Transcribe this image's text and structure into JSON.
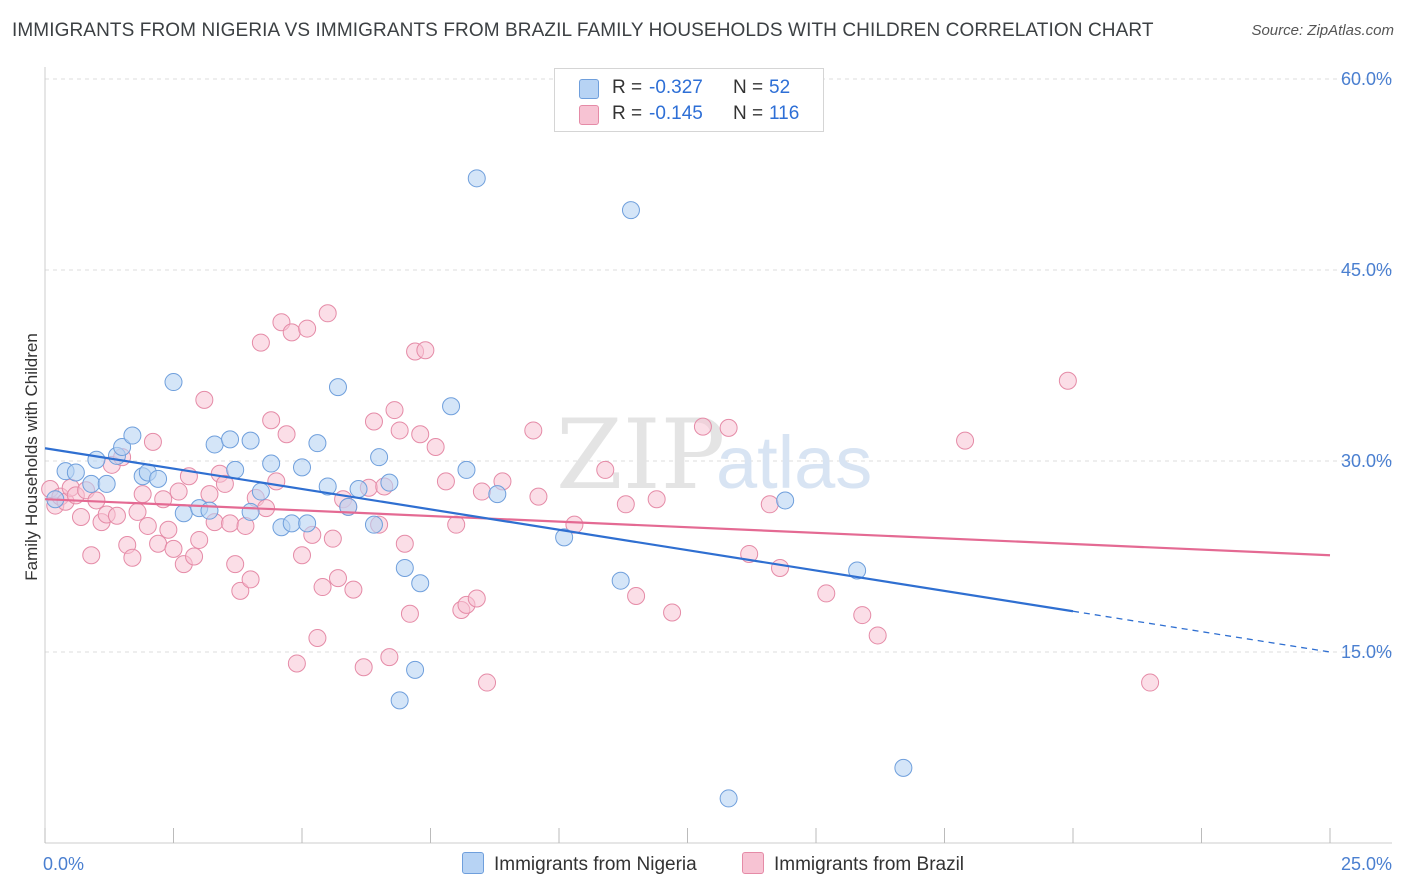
{
  "title": "IMMIGRANTS FROM NIGERIA VS IMMIGRANTS FROM BRAZIL FAMILY HOUSEHOLDS WITH CHILDREN CORRELATION CHART",
  "source": "Source: ZipAtlas.com",
  "watermark": {
    "zip": "ZIP",
    "atlas": "atlas"
  },
  "legend": {
    "rows": [
      {
        "r_label": "R =",
        "r_value": "-0.327",
        "n_label": "N =",
        "n_value": "52"
      },
      {
        "r_label": "R =",
        "r_value": "-0.145",
        "n_label": "N =",
        "n_value": "116"
      }
    ]
  },
  "bottom_legend": {
    "nigeria": "Immigrants from Nigeria",
    "brazil": "Immigrants from Brazil"
  },
  "colors": {
    "nigeria_fill": "#b7d3f4",
    "nigeria_stroke": "#6f9fdc",
    "nigeria_line": "#2f6fd1",
    "brazil_fill": "#f7c3d3",
    "brazil_stroke": "#e58ba7",
    "brazil_line": "#e46a93",
    "tick_text": "#4a7fd0",
    "grid": "#dddddd"
  },
  "chart_data": {
    "type": "scatter",
    "title": "IMMIGRANTS FROM NIGERIA VS IMMIGRANTS FROM BRAZIL FAMILY HOUSEHOLDS WITH CHILDREN CORRELATION CHART",
    "xlabel": "",
    "ylabel": "Family Households with Children",
    "xlim": [
      0,
      25
    ],
    "ylim": [
      0,
      60
    ],
    "x_tick_labels": [
      "0.0%",
      "25.0%"
    ],
    "y_ticks": [
      15,
      30,
      45,
      60
    ],
    "y_tick_labels": [
      "15.0%",
      "30.0%",
      "45.0%",
      "60.0%"
    ],
    "grid": true,
    "series": [
      {
        "name": "Immigrants from Nigeria",
        "r": -0.327,
        "n": 52,
        "trend": {
          "x": [
            0,
            20
          ],
          "y": [
            31.0,
            18.2
          ],
          "dashed_extension": {
            "x": [
              20,
              25
            ],
            "y": [
              18.2,
              15.0
            ]
          }
        },
        "points": [
          [
            0.2,
            27.0
          ],
          [
            0.4,
            29.2
          ],
          [
            0.6,
            29.1
          ],
          [
            0.9,
            28.2
          ],
          [
            1.0,
            30.1
          ],
          [
            1.2,
            28.2
          ],
          [
            1.4,
            30.4
          ],
          [
            1.5,
            31.1
          ],
          [
            1.7,
            32.0
          ],
          [
            1.9,
            28.8
          ],
          [
            2.0,
            29.1
          ],
          [
            2.2,
            28.6
          ],
          [
            2.5,
            36.2
          ],
          [
            2.7,
            25.9
          ],
          [
            3.0,
            26.3
          ],
          [
            3.2,
            26.1
          ],
          [
            3.3,
            31.3
          ],
          [
            3.6,
            31.7
          ],
          [
            3.7,
            29.3
          ],
          [
            4.0,
            26.0
          ],
          [
            4.0,
            31.6
          ],
          [
            4.2,
            27.6
          ],
          [
            4.4,
            29.8
          ],
          [
            4.6,
            24.8
          ],
          [
            4.8,
            25.1
          ],
          [
            5.0,
            29.5
          ],
          [
            5.1,
            25.1
          ],
          [
            5.3,
            31.4
          ],
          [
            5.5,
            28.0
          ],
          [
            5.7,
            35.8
          ],
          [
            5.9,
            26.4
          ],
          [
            6.1,
            27.8
          ],
          [
            6.4,
            25.0
          ],
          [
            6.5,
            30.3
          ],
          [
            6.7,
            28.3
          ],
          [
            6.9,
            11.2
          ],
          [
            7.0,
            21.6
          ],
          [
            7.2,
            13.6
          ],
          [
            7.3,
            20.4
          ],
          [
            7.9,
            34.3
          ],
          [
            8.2,
            29.3
          ],
          [
            8.4,
            52.2
          ],
          [
            8.8,
            27.4
          ],
          [
            10.1,
            24.0
          ],
          [
            11.2,
            20.6
          ],
          [
            11.4,
            49.7
          ],
          [
            13.3,
            3.5
          ],
          [
            14.4,
            26.9
          ],
          [
            15.8,
            21.4
          ],
          [
            16.7,
            5.9
          ]
        ]
      },
      {
        "name": "Immigrants from Brazil",
        "r": -0.145,
        "n": 116,
        "trend": {
          "x": [
            0,
            25
          ],
          "y": [
            27.0,
            22.6
          ]
        },
        "points": [
          [
            0.1,
            27.8
          ],
          [
            0.2,
            26.5
          ],
          [
            0.3,
            27.2
          ],
          [
            0.4,
            26.8
          ],
          [
            0.5,
            27.9
          ],
          [
            0.6,
            27.3
          ],
          [
            0.7,
            25.6
          ],
          [
            0.8,
            27.7
          ],
          [
            0.9,
            22.6
          ],
          [
            1.0,
            26.9
          ],
          [
            1.1,
            25.2
          ],
          [
            1.2,
            25.8
          ],
          [
            1.3,
            29.7
          ],
          [
            1.4,
            25.7
          ],
          [
            1.5,
            30.3
          ],
          [
            1.6,
            23.4
          ],
          [
            1.7,
            22.4
          ],
          [
            1.8,
            26.0
          ],
          [
            1.9,
            27.4
          ],
          [
            2.0,
            24.9
          ],
          [
            2.1,
            31.5
          ],
          [
            2.2,
            23.5
          ],
          [
            2.3,
            27.0
          ],
          [
            2.4,
            24.6
          ],
          [
            2.5,
            23.1
          ],
          [
            2.6,
            27.6
          ],
          [
            2.7,
            21.9
          ],
          [
            2.8,
            28.8
          ],
          [
            2.9,
            22.5
          ],
          [
            3.0,
            23.8
          ],
          [
            3.1,
            34.8
          ],
          [
            3.2,
            27.4
          ],
          [
            3.3,
            25.2
          ],
          [
            3.4,
            29.0
          ],
          [
            3.5,
            28.2
          ],
          [
            3.6,
            25.1
          ],
          [
            3.7,
            21.9
          ],
          [
            3.8,
            19.8
          ],
          [
            3.9,
            24.9
          ],
          [
            4.0,
            20.7
          ],
          [
            4.1,
            27.1
          ],
          [
            4.2,
            39.3
          ],
          [
            4.3,
            26.3
          ],
          [
            4.4,
            33.2
          ],
          [
            4.5,
            28.4
          ],
          [
            4.6,
            40.9
          ],
          [
            4.7,
            32.1
          ],
          [
            4.8,
            40.1
          ],
          [
            4.9,
            14.1
          ],
          [
            5.0,
            22.6
          ],
          [
            5.1,
            40.4
          ],
          [
            5.2,
            24.2
          ],
          [
            5.3,
            16.1
          ],
          [
            5.4,
            20.1
          ],
          [
            5.5,
            41.6
          ],
          [
            5.6,
            23.9
          ],
          [
            5.7,
            20.8
          ],
          [
            5.8,
            27.0
          ],
          [
            5.9,
            26.4
          ],
          [
            6.0,
            19.9
          ],
          [
            6.2,
            13.8
          ],
          [
            6.3,
            27.9
          ],
          [
            6.4,
            33.1
          ],
          [
            6.5,
            25.0
          ],
          [
            6.6,
            28.0
          ],
          [
            6.7,
            14.6
          ],
          [
            6.8,
            34.0
          ],
          [
            6.9,
            32.4
          ],
          [
            7.0,
            23.5
          ],
          [
            7.1,
            18.0
          ],
          [
            7.2,
            38.6
          ],
          [
            7.3,
            32.1
          ],
          [
            7.4,
            38.7
          ],
          [
            7.6,
            31.1
          ],
          [
            7.8,
            28.4
          ],
          [
            8.0,
            25.0
          ],
          [
            8.1,
            18.3
          ],
          [
            8.2,
            18.7
          ],
          [
            8.4,
            19.2
          ],
          [
            8.5,
            27.6
          ],
          [
            8.6,
            12.6
          ],
          [
            8.9,
            28.4
          ],
          [
            9.5,
            32.4
          ],
          [
            9.6,
            27.2
          ],
          [
            10.3,
            25.0
          ],
          [
            10.9,
            29.3
          ],
          [
            11.3,
            26.6
          ],
          [
            11.5,
            19.4
          ],
          [
            11.9,
            27.0
          ],
          [
            12.2,
            18.1
          ],
          [
            12.8,
            32.7
          ],
          [
            13.3,
            32.6
          ],
          [
            13.7,
            22.7
          ],
          [
            14.1,
            26.6
          ],
          [
            14.3,
            21.6
          ],
          [
            15.2,
            19.6
          ],
          [
            15.9,
            17.9
          ],
          [
            16.2,
            16.3
          ],
          [
            17.9,
            31.6
          ],
          [
            19.9,
            36.3
          ],
          [
            21.5,
            12.6
          ]
        ]
      }
    ]
  }
}
